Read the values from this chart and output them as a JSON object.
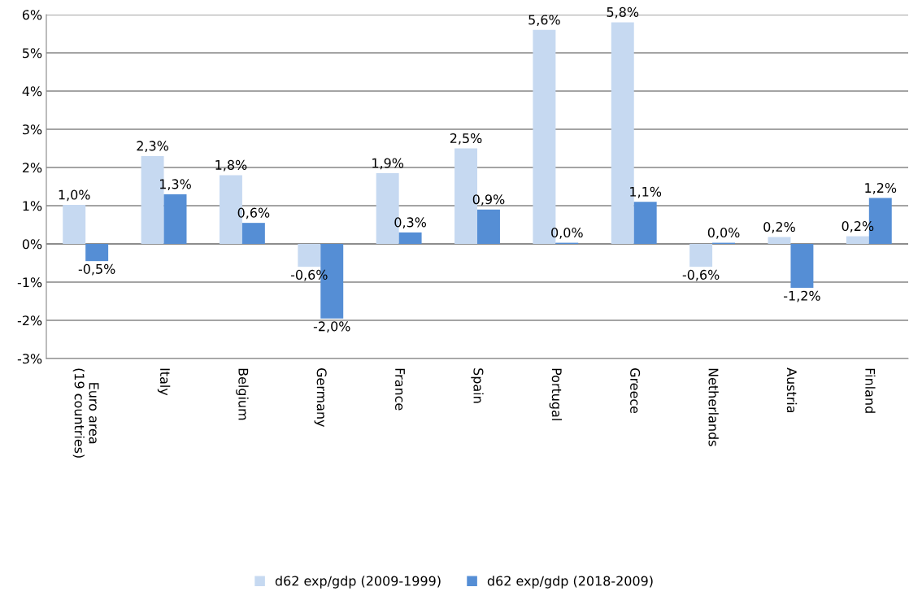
{
  "chart_data": {
    "type": "bar",
    "categories": [
      "Euro area\n(19 countries)",
      "Italy",
      "Belgium",
      "Germany",
      "France",
      "Spain",
      "Portugal",
      "Greece",
      "Netherlands",
      "Austria",
      "Finland"
    ],
    "series": [
      {
        "name": "d62 exp/gdp (2009-1999)",
        "color": "#c6d9f1",
        "values": [
          1.02,
          2.3,
          1.8,
          -0.6,
          1.85,
          2.5,
          5.6,
          5.8,
          -0.6,
          0.18,
          0.2
        ],
        "value_labels": [
          "1,0%",
          "2,3%",
          "1,8%",
          "-0,6%",
          "1,9%",
          "2,5%",
          "5,6%",
          "5,8%",
          "-0,6%",
          "0,2%",
          "0,2%"
        ]
      },
      {
        "name": "d62 exp/gdp (2018-2009)",
        "color": "#558ed5",
        "values": [
          -0.45,
          1.3,
          0.55,
          -1.95,
          0.3,
          0.9,
          0.03,
          1.1,
          0.03,
          -1.15,
          1.2
        ],
        "value_labels": [
          "-0,5%",
          "1,3%",
          "0,6%",
          "-2,0%",
          "0,3%",
          "0,9%",
          "0,0%",
          "1,1%",
          "0,0%",
          "-1,2%",
          "1,2%"
        ]
      }
    ],
    "ylim": [
      -3,
      6
    ],
    "yticks": [
      {
        "value": -3,
        "label": "-3%"
      },
      {
        "value": -2,
        "label": "-2%"
      },
      {
        "value": -1,
        "label": "-1%"
      },
      {
        "value": 0,
        "label": "0%"
      },
      {
        "value": 1,
        "label": "1%"
      },
      {
        "value": 2,
        "label": "2%"
      },
      {
        "value": 3,
        "label": "3%"
      },
      {
        "value": 4,
        "label": "4%"
      },
      {
        "value": 5,
        "label": "5%"
      },
      {
        "value": 6,
        "label": "6%"
      }
    ],
    "grid": "y",
    "legend": "bottom"
  }
}
